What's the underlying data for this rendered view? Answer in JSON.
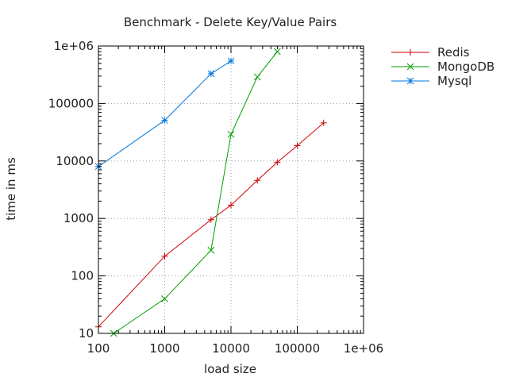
{
  "chart_data": {
    "type": "line",
    "title": "Benchmark - Delete Key/Value Pairs",
    "xlabel": "load size",
    "ylabel": "time in ms",
    "xscale": "log",
    "yscale": "log",
    "xlim": [
      100,
      1000000
    ],
    "ylim": [
      10,
      1000000
    ],
    "grid": true,
    "legend": "top-right-outside",
    "xticks": [
      "100",
      "1000",
      "10000",
      "100000",
      "1e+06"
    ],
    "yticks": [
      "10",
      "100",
      "1000",
      "10000",
      "100000",
      "1e+06"
    ],
    "series": [
      {
        "name": "Redis",
        "color": "#cc0000",
        "marker": "plus",
        "x": [
          100,
          1000,
          5000,
          10000,
          25000,
          50000,
          100000,
          250000
        ],
        "y": [
          13,
          220,
          950,
          1700,
          4600,
          9500,
          18500,
          46000
        ]
      },
      {
        "name": "MongoDB",
        "color": "#00a000",
        "marker": "cross",
        "x": [
          170,
          1000,
          5000,
          10000,
          25000,
          50000
        ],
        "y": [
          10,
          40,
          280,
          29000,
          290000,
          800000
        ]
      },
      {
        "name": "Mysql",
        "color": "#0077dd",
        "marker": "star",
        "x": [
          100,
          1000,
          5000,
          10000
        ],
        "y": [
          8000,
          51000,
          330000,
          550000
        ]
      }
    ]
  }
}
